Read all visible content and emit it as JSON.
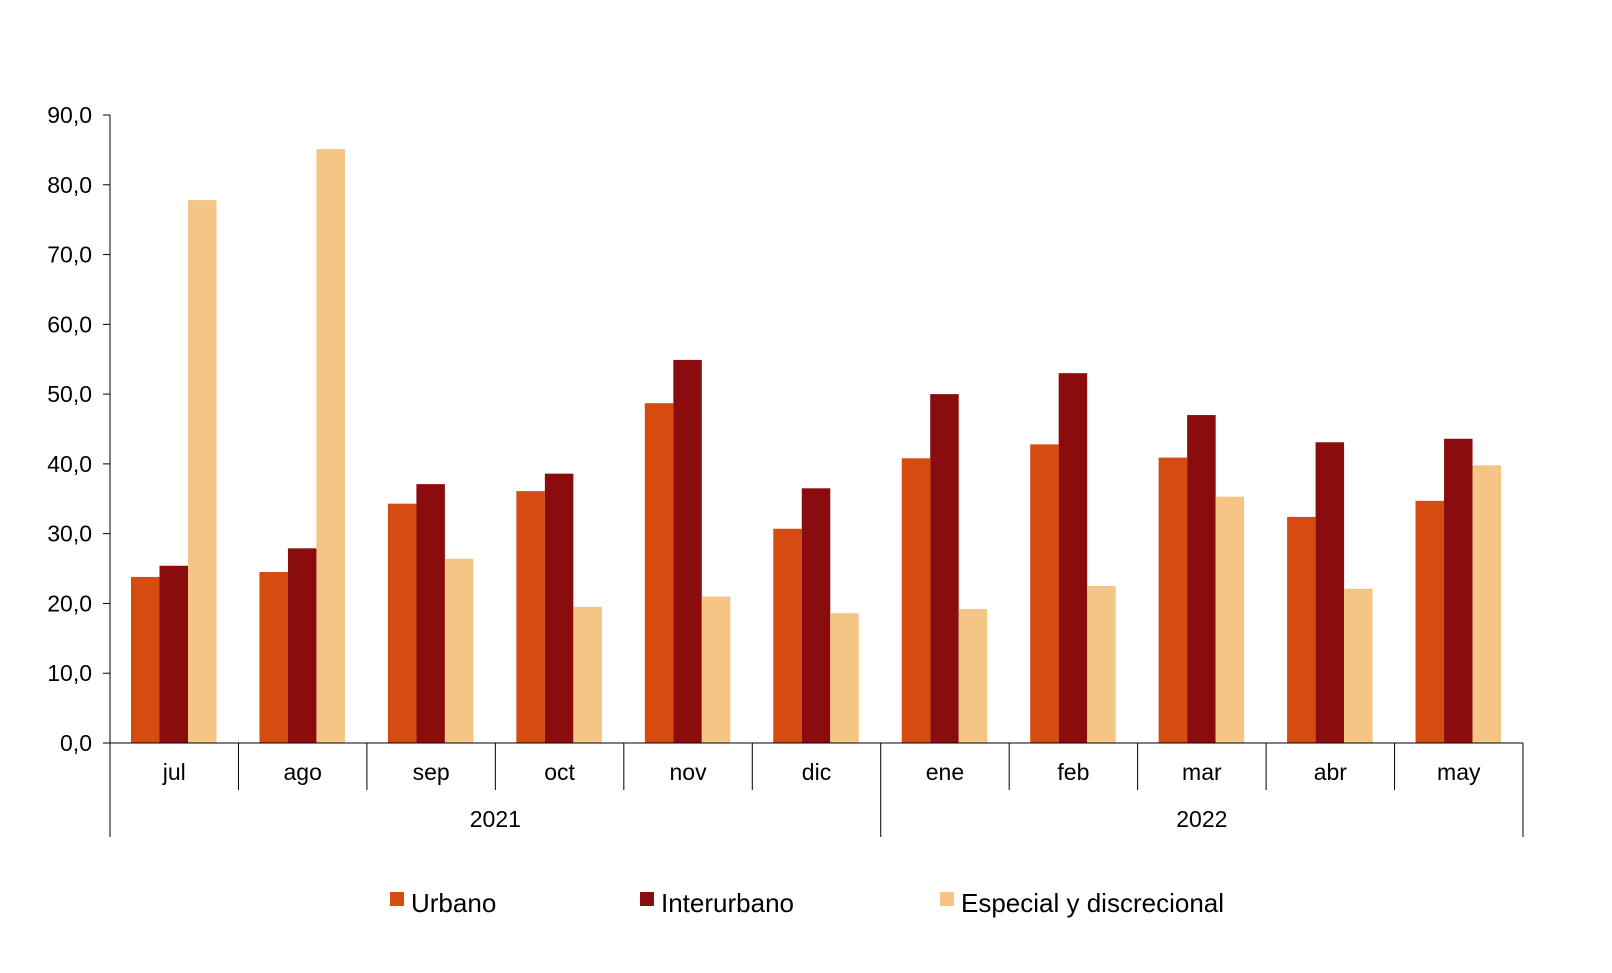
{
  "chart_data": {
    "type": "bar",
    "title": "",
    "xlabel": "",
    "ylabel": "",
    "ylim": [
      0,
      90
    ],
    "yticks": [
      "0,0",
      "10,0",
      "20,0",
      "30,0",
      "40,0",
      "50,0",
      "60,0",
      "70,0",
      "80,0",
      "90,0"
    ],
    "categories": [
      "jul",
      "ago",
      "sep",
      "oct",
      "nov",
      "dic",
      "ene",
      "feb",
      "mar",
      "abr",
      "may"
    ],
    "groups": [
      {
        "label": "2021",
        "start": 0,
        "end": 5
      },
      {
        "label": "2022",
        "start": 6,
        "end": 10
      }
    ],
    "series": [
      {
        "name": "Urbano",
        "color": "#D54B10",
        "values": [
          23.8,
          24.5,
          34.3,
          36.1,
          48.7,
          30.7,
          40.8,
          42.8,
          40.9,
          32.4,
          34.7
        ]
      },
      {
        "name": "Interurbano",
        "color": "#8B0C0C",
        "values": [
          25.4,
          27.9,
          37.1,
          38.6,
          54.9,
          36.5,
          50.0,
          53.0,
          47.0,
          43.1,
          43.6
        ]
      },
      {
        "name": "Especial y discrecional",
        "color": "#F5C585",
        "values": [
          77.8,
          85.1,
          26.4,
          19.5,
          21.0,
          18.6,
          19.2,
          22.5,
          35.3,
          22.1,
          39.8
        ]
      }
    ],
    "legend_position": "bottom",
    "grid": false
  }
}
